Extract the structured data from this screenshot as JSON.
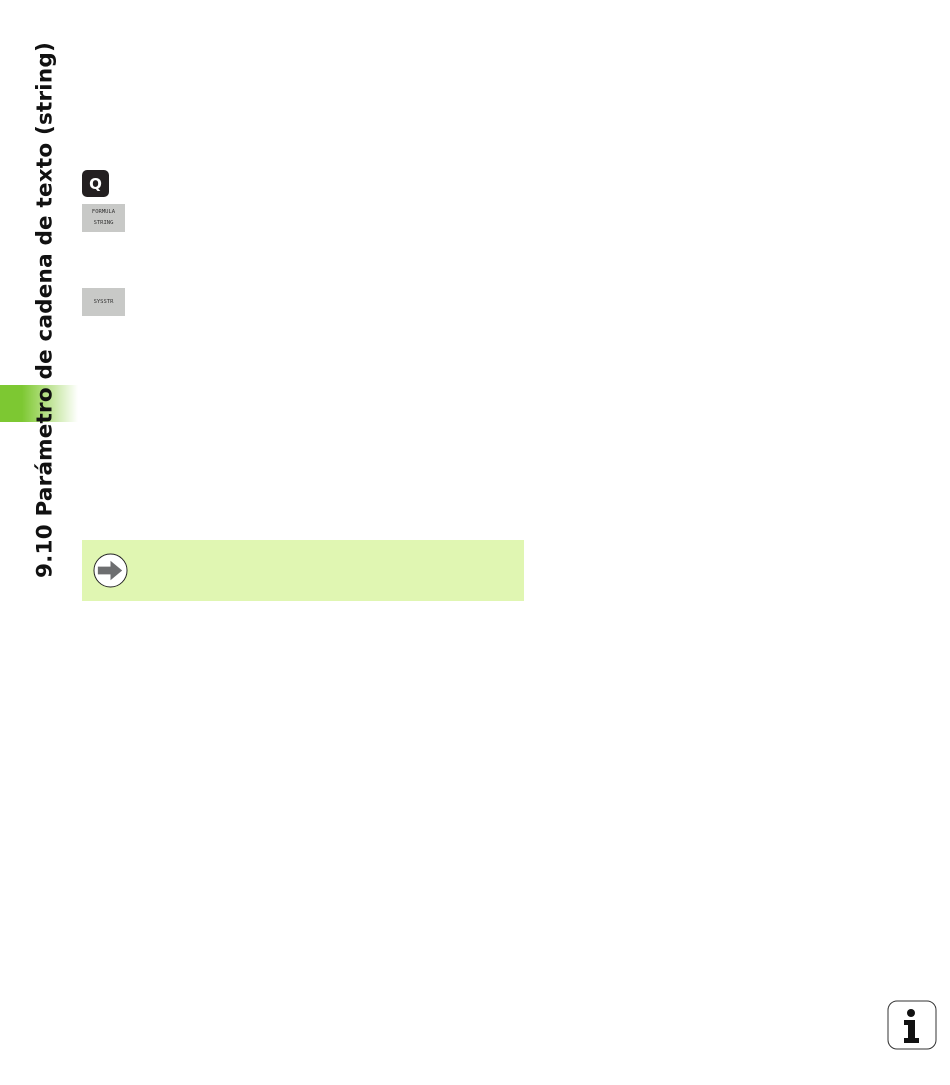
{
  "side_title": "9.10 Parámetro de cadena de texto (string)",
  "keys": {
    "q_key": "Q",
    "formula_string": [
      "FORMULA",
      "STRING"
    ],
    "sysstr": "SYSSTR"
  },
  "note": {
    "icon": "arrow-right-circle-icon",
    "color": "#e0f6b2"
  },
  "info_icon": "info-icon",
  "accent_color": "#7dc832"
}
